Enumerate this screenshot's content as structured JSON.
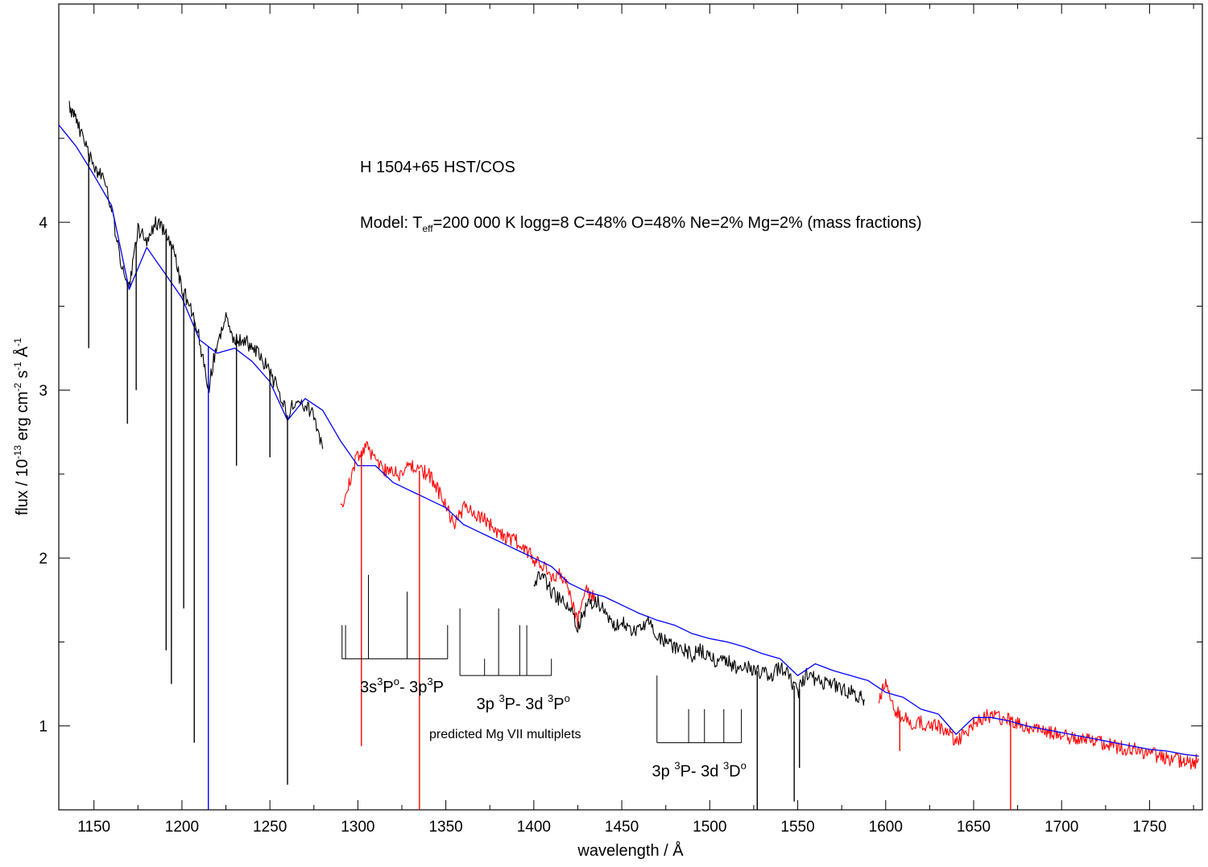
{
  "chart_data": {
    "type": "line",
    "title": "H 1504+65 HST/COS",
    "model_text": {
      "prefix": "Model: T",
      "sub": "eff",
      "rest": "=200 000 K  logg=8   C=48%  O=48%  Ne=2%  Mg=2% (mass fractions)"
    },
    "xlabel": "wavelength / Å",
    "ylabel": {
      "a": "flux / 10",
      "a_sup": "-13",
      "b": " erg cm",
      "b_sup": "-2",
      "c": " s",
      "c_sup": "-1",
      "d": " Å",
      "d_sup": "-1"
    },
    "xlim": [
      1130,
      1780
    ],
    "ylim": [
      0.5,
      5.3
    ],
    "x_ticks": [
      1150,
      1200,
      1250,
      1300,
      1350,
      1400,
      1450,
      1500,
      1550,
      1600,
      1650,
      1700,
      1750
    ],
    "x_tick_labels": [
      "1150",
      "1200",
      "1250",
      "1300",
      "1350",
      "1400",
      "1450",
      "1500",
      "1550",
      "1600",
      "1650",
      "1700",
      "1750"
    ],
    "y_ticks": [
      1,
      2,
      3,
      4
    ],
    "y_tick_labels": [
      "1",
      "2",
      "3",
      "4"
    ],
    "grid": false,
    "colors": {
      "observed_black": "#000000",
      "observed_red": "#ff0000",
      "model": "#0000ff"
    },
    "series": [
      {
        "color": "#000000",
        "x": [
          1136,
          1140,
          1145,
          1150,
          1155,
          1160,
          1165,
          1170,
          1175,
          1180,
          1185,
          1190,
          1195,
          1200,
          1205,
          1210,
          1215,
          1220,
          1225,
          1230,
          1235,
          1240,
          1245,
          1250,
          1255,
          1260,
          1265,
          1270,
          1275,
          1280
        ],
        "y": [
          4.7,
          4.6,
          4.45,
          4.35,
          4.25,
          4.1,
          3.75,
          3.6,
          3.95,
          3.9,
          4.0,
          3.95,
          3.85,
          3.6,
          3.5,
          3.3,
          3.0,
          3.3,
          3.42,
          3.3,
          3.3,
          3.25,
          3.2,
          3.1,
          3.0,
          2.85,
          2.95,
          2.9,
          2.85,
          2.65
        ]
      },
      {
        "color": "#ff0000",
        "x": [
          1290,
          1295,
          1300,
          1305,
          1310,
          1315,
          1320,
          1325,
          1330,
          1335,
          1340,
          1345,
          1350,
          1355,
          1360,
          1365,
          1370,
          1375,
          1380,
          1385,
          1390,
          1395,
          1400,
          1405,
          1410,
          1415,
          1420,
          1425,
          1430,
          1435
        ],
        "y": [
          2.3,
          2.45,
          2.62,
          2.66,
          2.6,
          2.52,
          2.5,
          2.5,
          2.55,
          2.52,
          2.5,
          2.42,
          2.3,
          2.2,
          2.3,
          2.27,
          2.25,
          2.2,
          2.15,
          2.12,
          2.1,
          2.05,
          2.0,
          1.95,
          1.9,
          1.9,
          1.8,
          1.62,
          1.8,
          1.78
        ]
      },
      {
        "color": "#000000",
        "x": [
          1400,
          1405,
          1410,
          1415,
          1420,
          1425,
          1430,
          1435,
          1440,
          1445,
          1450,
          1455,
          1460,
          1465,
          1470,
          1475,
          1480,
          1485,
          1490,
          1495,
          1500,
          1505,
          1510,
          1515,
          1520,
          1525,
          1530,
          1535,
          1540,
          1545,
          1550,
          1555,
          1560,
          1565,
          1570,
          1575,
          1580,
          1585,
          1588
        ],
        "y": [
          1.85,
          1.9,
          1.8,
          1.75,
          1.72,
          1.58,
          1.72,
          1.75,
          1.7,
          1.6,
          1.62,
          1.55,
          1.6,
          1.62,
          1.55,
          1.5,
          1.47,
          1.45,
          1.42,
          1.45,
          1.4,
          1.38,
          1.38,
          1.35,
          1.35,
          1.33,
          1.32,
          1.3,
          1.35,
          1.3,
          1.2,
          1.3,
          1.28,
          1.25,
          1.25,
          1.22,
          1.2,
          1.18,
          1.15
        ]
      },
      {
        "color": "#ff0000",
        "x": [
          1596,
          1600,
          1605,
          1610,
          1615,
          1620,
          1625,
          1630,
          1635,
          1640,
          1645,
          1650,
          1655,
          1660,
          1665,
          1670,
          1675,
          1680,
          1685,
          1690,
          1695,
          1700,
          1705,
          1710,
          1715,
          1720,
          1725,
          1730,
          1735,
          1740,
          1745,
          1750,
          1755,
          1760,
          1765,
          1770,
          1775,
          1778
        ],
        "y": [
          1.15,
          1.25,
          1.1,
          1.05,
          1.02,
          1.02,
          1.0,
          1.0,
          0.98,
          0.9,
          0.95,
          1.02,
          1.05,
          1.06,
          1.05,
          1.03,
          1.02,
          1.0,
          0.98,
          0.97,
          0.96,
          0.95,
          0.93,
          0.92,
          0.92,
          0.9,
          0.89,
          0.88,
          0.87,
          0.86,
          0.85,
          0.84,
          0.82,
          0.81,
          0.8,
          0.78,
          0.78,
          0.8
        ]
      },
      {
        "color": "#0000ff",
        "x": [
          1130,
          1140,
          1150,
          1160,
          1170,
          1180,
          1190,
          1200,
          1210,
          1220,
          1230,
          1240,
          1250,
          1260,
          1270,
          1280,
          1290,
          1300,
          1310,
          1320,
          1330,
          1340,
          1350,
          1360,
          1370,
          1380,
          1390,
          1400,
          1410,
          1420,
          1430,
          1440,
          1450,
          1460,
          1470,
          1480,
          1490,
          1500,
          1510,
          1520,
          1530,
          1540,
          1550,
          1560,
          1570,
          1580,
          1590,
          1600,
          1610,
          1620,
          1630,
          1640,
          1650,
          1660,
          1670,
          1680,
          1690,
          1700,
          1710,
          1720,
          1730,
          1740,
          1750,
          1760,
          1770,
          1778
        ],
        "y": [
          4.58,
          4.45,
          4.28,
          4.1,
          3.6,
          3.85,
          3.7,
          3.55,
          3.3,
          3.22,
          3.25,
          3.17,
          3.05,
          2.82,
          2.95,
          2.88,
          2.7,
          2.55,
          2.55,
          2.45,
          2.4,
          2.35,
          2.3,
          2.2,
          2.15,
          2.1,
          2.05,
          2.0,
          1.95,
          1.85,
          1.8,
          1.77,
          1.72,
          1.67,
          1.63,
          1.6,
          1.55,
          1.52,
          1.5,
          1.47,
          1.43,
          1.4,
          1.3,
          1.37,
          1.33,
          1.3,
          1.27,
          1.2,
          1.17,
          1.1,
          1.07,
          0.95,
          1.05,
          1.05,
          1.03,
          1.0,
          0.98,
          0.96,
          0.94,
          0.92,
          0.9,
          0.88,
          0.86,
          0.85,
          0.83,
          0.82
        ]
      }
    ],
    "absorption_lines": [
      {
        "x": 1147,
        "ymin": 3.25,
        "color": "#000000"
      },
      {
        "x": 1169,
        "ymin": 2.8,
        "color": "#000000"
      },
      {
        "x": 1174,
        "ymin": 3.0,
        "color": "#000000"
      },
      {
        "x": 1191,
        "ymin": 1.45,
        "color": "#000000"
      },
      {
        "x": 1194,
        "ymin": 1.25,
        "color": "#000000"
      },
      {
        "x": 1201,
        "ymin": 1.7,
        "color": "#000000"
      },
      {
        "x": 1207,
        "ymin": 0.9,
        "color": "#000000"
      },
      {
        "x": 1215,
        "ymin": 0.5,
        "color": "#0000ff"
      },
      {
        "x": 1231,
        "ymin": 2.55,
        "color": "#000000"
      },
      {
        "x": 1250,
        "ymin": 2.6,
        "color": "#000000"
      },
      {
        "x": 1260,
        "ymin": 0.65,
        "color": "#000000"
      },
      {
        "x": 1302,
        "ymin": 0.88,
        "color": "#ff0000"
      },
      {
        "x": 1335,
        "ymin": 0.5,
        "color": "#ff0000"
      },
      {
        "x": 1527,
        "ymin": 0.5,
        "color": "#000000"
      },
      {
        "x": 1548,
        "ymin": 0.55,
        "color": "#000000"
      },
      {
        "x": 1551,
        "ymin": 0.75,
        "color": "#000000"
      },
      {
        "x": 1608,
        "ymin": 0.85,
        "color": "#ff0000"
      },
      {
        "x": 1671,
        "ymin": 0.5,
        "color": "#ff0000"
      }
    ],
    "multiplets": [
      {
        "label_parts": [
          "3s",
          "3",
          "P",
          "o",
          "- 3p",
          "3",
          "P"
        ],
        "baseline_y": 1.4,
        "x_range": [
          1291,
          1351
        ],
        "lines": [
          {
            "x": 1291,
            "top": 1.6
          },
          {
            "x": 1293,
            "top": 1.6
          },
          {
            "x": 1306,
            "top": 1.9
          },
          {
            "x": 1328,
            "top": 1.8
          },
          {
            "x": 1351,
            "top": 1.6
          }
        ],
        "label_x": 1325,
        "label_y": 1.2
      },
      {
        "label_parts": [
          "3p ",
          "3",
          "P- 3d ",
          "3",
          "P",
          "o"
        ],
        "baseline_y": 1.3,
        "x_range": [
          1358,
          1410
        ],
        "lines": [
          {
            "x": 1358,
            "top": 1.7
          },
          {
            "x": 1372,
            "top": 1.4
          },
          {
            "x": 1380,
            "top": 1.7
          },
          {
            "x": 1392,
            "top": 1.6
          },
          {
            "x": 1396,
            "top": 1.6
          },
          {
            "x": 1410,
            "top": 1.4
          }
        ],
        "label_x": 1394,
        "label_y": 1.1
      },
      {
        "label_parts": [
          "3p ",
          "3",
          "P- 3d ",
          "3",
          "D",
          "o"
        ],
        "baseline_y": 0.9,
        "x_range": [
          1470,
          1518
        ],
        "lines": [
          {
            "x": 1470,
            "top": 1.3
          },
          {
            "x": 1488,
            "top": 1.1
          },
          {
            "x": 1497,
            "top": 1.1
          },
          {
            "x": 1508,
            "top": 1.1
          },
          {
            "x": 1518,
            "top": 1.1
          }
        ],
        "label_x": 1494,
        "label_y": 0.7
      }
    ],
    "multiplet_caption": "predicted Mg VII multiplets"
  }
}
